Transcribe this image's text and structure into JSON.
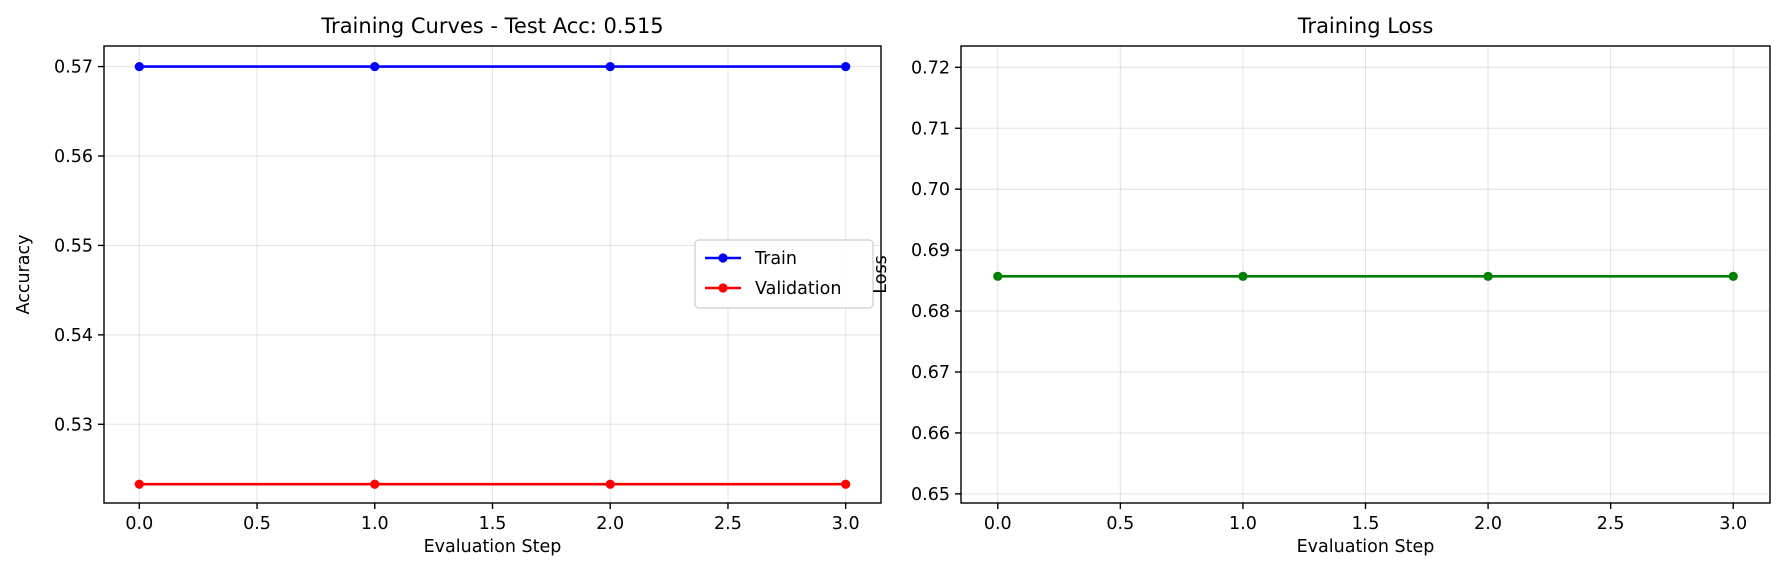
{
  "chart_data": [
    {
      "type": "line",
      "title": "Training Curves - Test Acc: 0.515",
      "xlabel": "Evaluation Step",
      "ylabel": "Accuracy",
      "x": [
        0,
        1,
        2,
        3
      ],
      "xlim": [
        -0.15,
        3.15
      ],
      "ylim": [
        0.5212,
        0.5723
      ],
      "xticks": [
        "0.0",
        "0.5",
        "1.0",
        "1.5",
        "2.0",
        "2.5",
        "3.0"
      ],
      "yticks": [
        "0.53",
        "0.54",
        "0.55",
        "0.56",
        "0.57"
      ],
      "grid": true,
      "legend": "center-right",
      "series": [
        {
          "name": "Train",
          "color": "#0000ff",
          "values": [
            0.57,
            0.57,
            0.57,
            0.57
          ]
        },
        {
          "name": "Validation",
          "color": "#ff0000",
          "values": [
            0.5233,
            0.5233,
            0.5233,
            0.5233
          ]
        }
      ]
    },
    {
      "type": "line",
      "title": "Training Loss",
      "xlabel": "Evaluation Step",
      "ylabel": "Loss",
      "x": [
        0,
        1,
        2,
        3
      ],
      "xlim": [
        -0.15,
        3.15
      ],
      "ylim": [
        0.6485,
        0.7235
      ],
      "xticks": [
        "0.0",
        "0.5",
        "1.0",
        "1.5",
        "2.0",
        "2.5",
        "3.0"
      ],
      "yticks": [
        "0.65",
        "0.66",
        "0.67",
        "0.68",
        "0.69",
        "0.70",
        "0.71",
        "0.72"
      ],
      "grid": true,
      "series": [
        {
          "color": "#008000",
          "values": [
            0.6857,
            0.6857,
            0.6857,
            0.6857
          ]
        }
      ]
    }
  ]
}
